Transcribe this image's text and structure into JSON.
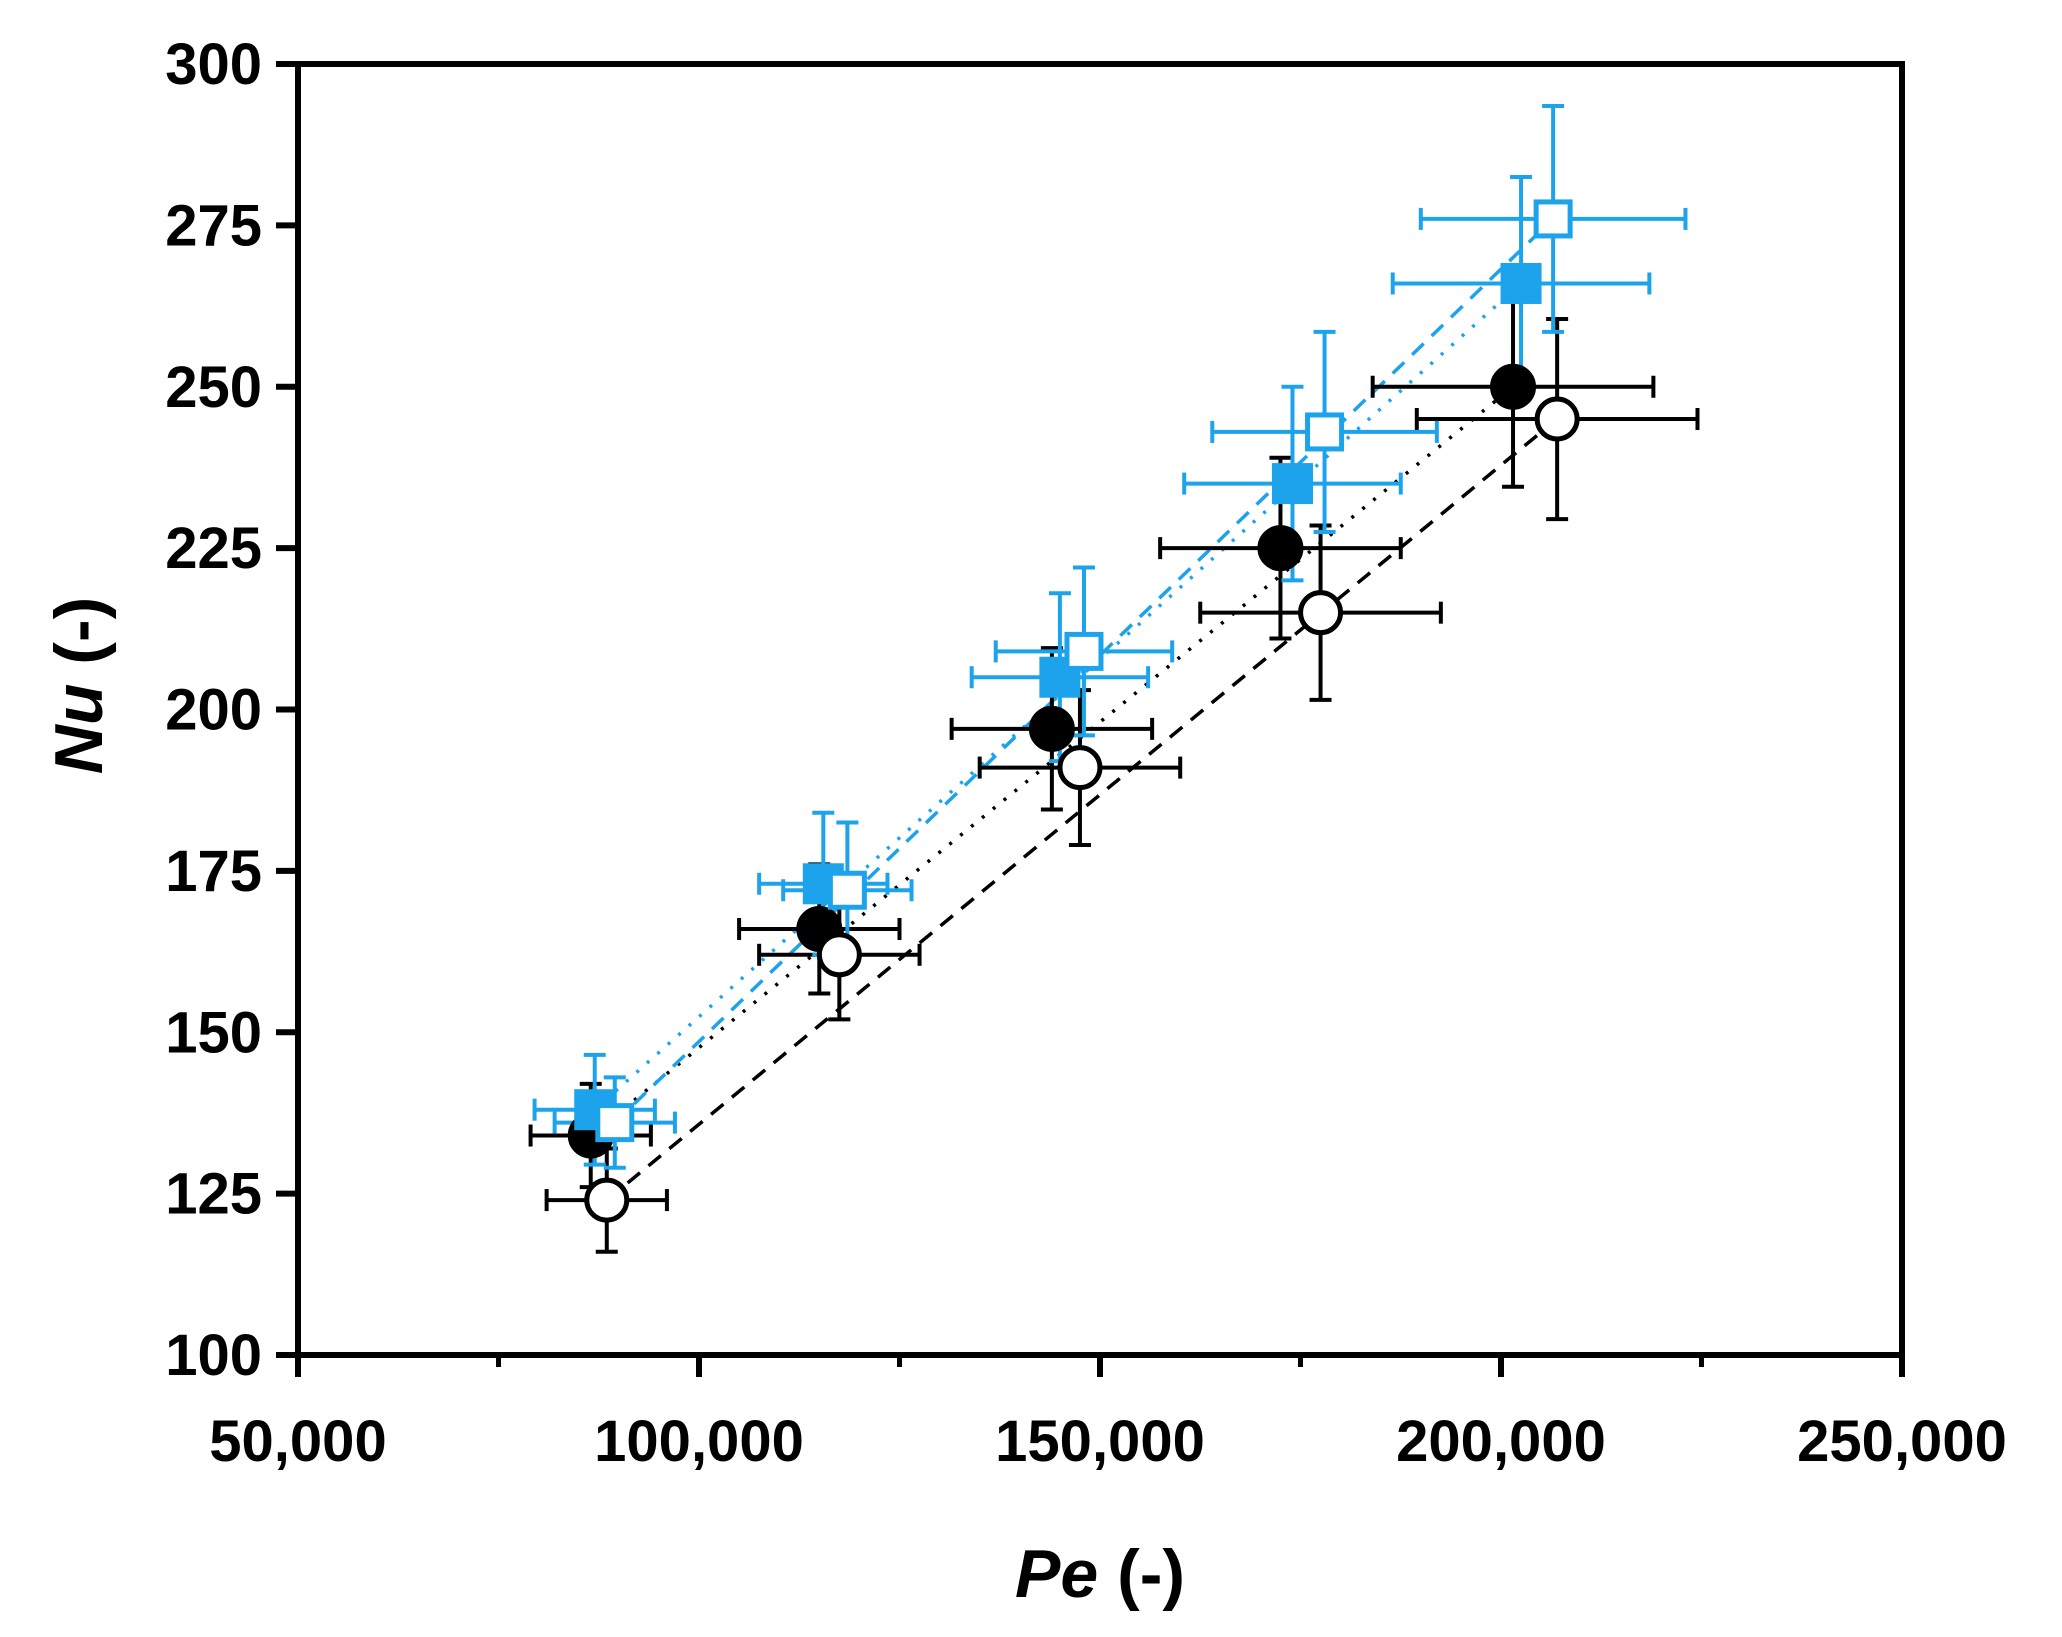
{
  "chart_data": {
    "type": "scatter",
    "xlabel": {
      "symbol": "Pe",
      "unit": "(-)"
    },
    "ylabel": {
      "symbol": "Nu",
      "unit": "(-)"
    },
    "xlim": [
      50000,
      250000
    ],
    "ylim": [
      100,
      300
    ],
    "x_ticks": [
      50000,
      100000,
      150000,
      200000,
      250000
    ],
    "x_tick_labels": [
      "50,000",
      "100,000",
      "150,000",
      "200,000",
      "250,000"
    ],
    "y_ticks": [
      100,
      125,
      150,
      175,
      200,
      225,
      250,
      275,
      300
    ],
    "y_tick_labels": [
      "100",
      "125",
      "150",
      "175",
      "200",
      "225",
      "250",
      "275",
      "300"
    ],
    "x_minor_ticks": [
      75000,
      125000,
      175000,
      225000
    ],
    "grid": false,
    "legend": "none",
    "series": [
      {
        "marker": "filled-circle",
        "color": "#000000",
        "line": "dotted",
        "line_color": "#000000",
        "points": [
          {
            "x": 86500,
            "y": 134,
            "xerr": 7500,
            "yerr": 8
          },
          {
            "x": 115000,
            "y": 166,
            "xerr": 10000,
            "yerr": 10
          },
          {
            "x": 144000,
            "y": 197,
            "xerr": 12500,
            "yerr": 12.5
          },
          {
            "x": 172500,
            "y": 225,
            "xerr": 15000,
            "yerr": 14
          },
          {
            "x": 201500,
            "y": 250,
            "xerr": 17500,
            "yerr": 15.5
          }
        ]
      },
      {
        "marker": "open-circle",
        "color": "#000000",
        "line": "dashed",
        "line_color": "#000000",
        "points": [
          {
            "x": 88500,
            "y": 124,
            "xerr": 7500,
            "yerr": 8
          },
          {
            "x": 117500,
            "y": 162,
            "xerr": 10000,
            "yerr": 10
          },
          {
            "x": 147500,
            "y": 191,
            "xerr": 12500,
            "yerr": 12
          },
          {
            "x": 177500,
            "y": 215,
            "xerr": 15000,
            "yerr": 13.5
          },
          {
            "x": 207000,
            "y": 245,
            "xerr": 17500,
            "yerr": 15.5
          }
        ]
      },
      {
        "marker": "filled-square",
        "color": "#1ca3ec",
        "line": "dotted",
        "line_color": "#1ca3ec",
        "points": [
          {
            "x": 87000,
            "y": 138,
            "xerr": 7500,
            "yerr": 8.5
          },
          {
            "x": 115500,
            "y": 173,
            "xerr": 8000,
            "yerr": 11
          },
          {
            "x": 145000,
            "y": 205,
            "xerr": 11000,
            "yerr": 13
          },
          {
            "x": 174000,
            "y": 235,
            "xerr": 13500,
            "yerr": 15
          },
          {
            "x": 202500,
            "y": 266,
            "xerr": 16000,
            "yerr": 16.5
          }
        ]
      },
      {
        "marker": "open-square",
        "color": "#1ca3ec",
        "line": "dashed",
        "line_color": "#1ca3ec",
        "points": [
          {
            "x": 89500,
            "y": 136,
            "xerr": 7500,
            "yerr": 7
          },
          {
            "x": 118500,
            "y": 172,
            "xerr": 8000,
            "yerr": 10.5
          },
          {
            "x": 148000,
            "y": 209,
            "xerr": 11000,
            "yerr": 13
          },
          {
            "x": 178000,
            "y": 243,
            "xerr": 14000,
            "yerr": 15.5
          },
          {
            "x": 206500,
            "y": 276,
            "xerr": 16500,
            "yerr": 17.5
          }
        ]
      }
    ]
  }
}
